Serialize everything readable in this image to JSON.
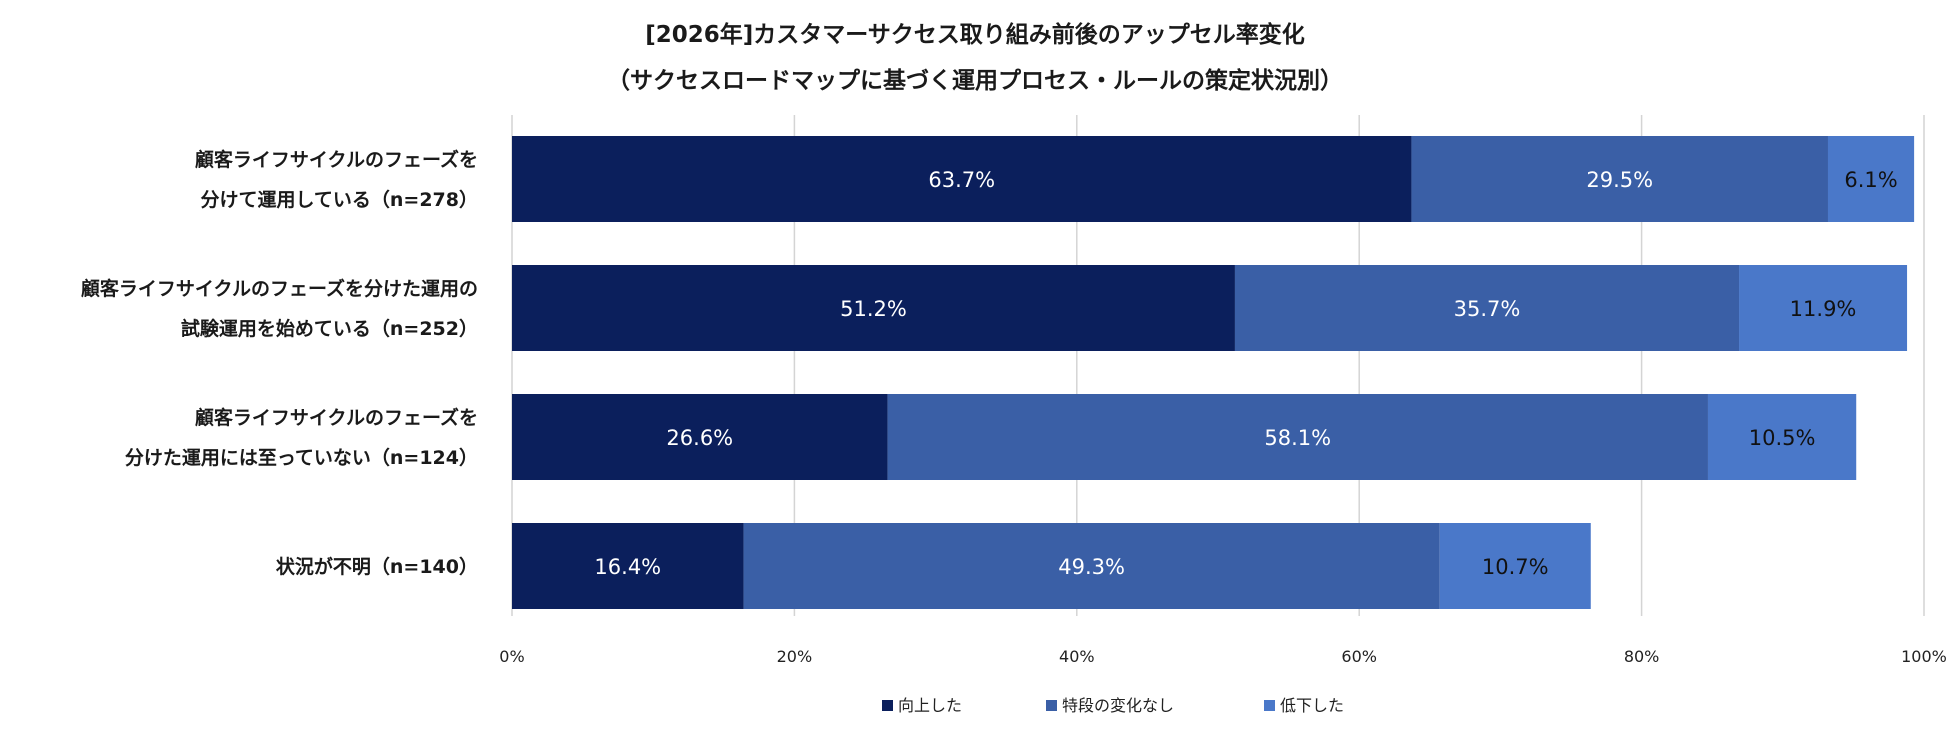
{
  "chart_data": {
    "type": "bar",
    "orientation": "horizontal",
    "stacked": true,
    "title": "[2026年]カスタマーサクセス取り組み前後のアップセル率変化",
    "subtitle": "（サクセスロードマップに基づく運用プロセス・ルールの策定状況別）",
    "categories": [
      [
        "顧客ライフサイクルのフェーズを",
        "分けて運用している（n=278）"
      ],
      [
        "顧客ライフサイクルのフェーズを分けた運用の",
        "試験運用を始めている（n=252）"
      ],
      [
        "顧客ライフサイクルのフェーズを",
        "分けた運用には至っていない（n=124）"
      ],
      [
        "状況が不明（n=140）"
      ]
    ],
    "series": [
      {
        "name": "向上した",
        "color": "#0b1f5c",
        "label_color": "#ffffff",
        "values": [
          63.7,
          51.2,
          26.6,
          16.4
        ],
        "labels": [
          "63.7%",
          "51.2%",
          "26.6%",
          "16.4%"
        ]
      },
      {
        "name": "特段の変化なし",
        "color": "#3a5fa6",
        "label_color": "#ffffff",
        "values": [
          29.5,
          35.7,
          58.1,
          49.3
        ],
        "labels": [
          "29.5%",
          "35.7%",
          "58.1%",
          "49.3%"
        ]
      },
      {
        "name": "低下した",
        "color": "#4a78c9",
        "label_color": "#111111",
        "values": [
          6.1,
          11.9,
          10.5,
          10.7
        ],
        "labels": [
          "6.1%",
          "11.9%",
          "10.5%",
          "10.7%"
        ]
      }
    ],
    "xlim": [
      0,
      100
    ],
    "xticks": [
      0,
      20,
      40,
      60,
      80,
      100
    ],
    "xtick_labels": [
      "0%",
      "20%",
      "40%",
      "60%",
      "80%",
      "100%"
    ],
    "grid": true,
    "legend": "bottom"
  }
}
